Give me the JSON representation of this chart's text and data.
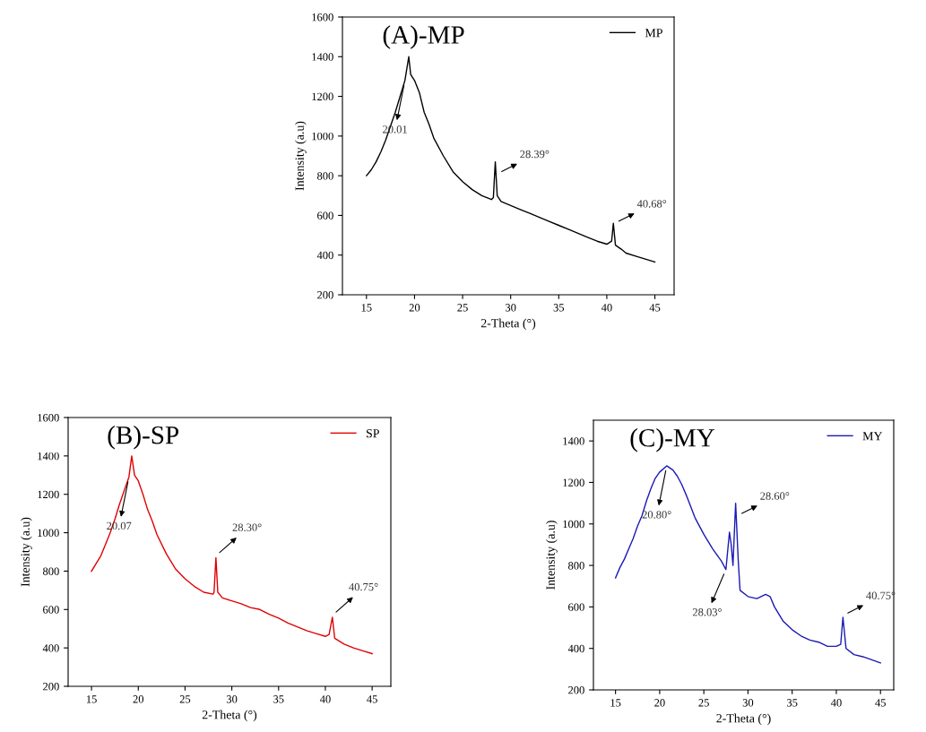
{
  "chart_data": [
    {
      "type": "line",
      "title": "(A)-MP",
      "xlabel": "2-Theta (°)",
      "ylabel": "Intensity (a.u)",
      "xlim": [
        12.5,
        47
      ],
      "ylim": [
        200,
        1600
      ],
      "xticks": [
        15,
        20,
        25,
        30,
        35,
        40,
        45
      ],
      "yticks": [
        200,
        400,
        600,
        800,
        1000,
        1200,
        1400,
        1600
      ],
      "legend": "top right",
      "grid": false,
      "series": [
        {
          "name": "MP",
          "color": "#000000",
          "x": [
            15,
            15.5,
            16,
            16.5,
            17,
            17.5,
            18,
            18.5,
            19,
            19.4,
            19.6,
            20,
            20.5,
            21,
            21.5,
            22,
            23,
            24,
            25,
            26,
            27,
            28,
            28.2,
            28.4,
            28.6,
            29,
            30,
            31,
            32,
            33,
            34,
            35,
            36,
            37,
            38,
            39,
            40,
            40.5,
            40.68,
            40.9,
            41.5,
            42,
            43,
            44,
            45
          ],
          "values": [
            800,
            830,
            870,
            920,
            980,
            1050,
            1120,
            1200,
            1280,
            1400,
            1310,
            1280,
            1220,
            1120,
            1060,
            990,
            900,
            820,
            770,
            730,
            700,
            680,
            690,
            870,
            700,
            670,
            650,
            630,
            610,
            590,
            570,
            550,
            530,
            510,
            490,
            470,
            455,
            470,
            560,
            450,
            430,
            410,
            395,
            380,
            365
          ]
        }
      ],
      "annotations": [
        {
          "text": "20.01",
          "x": 19,
          "y": 1280
        },
        {
          "text": "28.39°",
          "x": 28.6,
          "y": 810
        },
        {
          "text": "40.68°",
          "x": 40.8,
          "y": 560
        }
      ]
    },
    {
      "type": "line",
      "title": "(B)-SP",
      "xlabel": "2-Theta (°)",
      "ylabel": "Intensity (a.u)",
      "xlim": [
        12.5,
        47
      ],
      "ylim": [
        200,
        1600
      ],
      "xticks": [
        15,
        20,
        25,
        30,
        35,
        40,
        45
      ],
      "yticks": [
        200,
        400,
        600,
        800,
        1000,
        1200,
        1400,
        1600
      ],
      "legend": "top right",
      "grid": false,
      "series": [
        {
          "name": "SP",
          "color": "#e00000",
          "x": [
            15,
            15.5,
            16,
            16.5,
            17,
            17.5,
            18,
            18.5,
            19,
            19.3,
            19.6,
            20,
            20.5,
            21,
            21.5,
            22,
            23,
            24,
            25,
            26,
            27,
            28,
            28.1,
            28.3,
            28.5,
            29,
            30,
            31,
            32,
            33,
            34,
            35,
            36,
            37,
            38,
            39,
            40,
            40.4,
            40.75,
            41,
            42,
            43,
            44,
            45
          ],
          "values": [
            800,
            840,
            880,
            940,
            1000,
            1070,
            1150,
            1220,
            1290,
            1400,
            1300,
            1270,
            1200,
            1120,
            1060,
            990,
            890,
            810,
            760,
            720,
            690,
            680,
            690,
            870,
            690,
            660,
            645,
            630,
            610,
            600,
            575,
            555,
            530,
            510,
            490,
            475,
            460,
            470,
            560,
            450,
            420,
            400,
            385,
            370
          ]
        }
      ],
      "annotations": [
        {
          "text": "20.07",
          "x": 19,
          "y": 1290
        },
        {
          "text": "28.30°",
          "x": 28.3,
          "y": 880
        },
        {
          "text": "40.75°",
          "x": 40.75,
          "y": 570
        }
      ]
    },
    {
      "type": "line",
      "title": "(C)-MY",
      "xlabel": "2-Theta (°)",
      "ylabel": "Intensity (a.u)",
      "xlim": [
        12.5,
        46.5
      ],
      "ylim": [
        200,
        1500
      ],
      "xticks": [
        15,
        20,
        25,
        30,
        35,
        40,
        45
      ],
      "yticks": [
        200,
        400,
        600,
        800,
        1000,
        1200,
        1400
      ],
      "legend": "top right",
      "grid": false,
      "series": [
        {
          "name": "MY",
          "color": "#1a1ab4",
          "x": [
            15,
            15.5,
            16,
            16.5,
            17,
            17.5,
            18,
            18.5,
            19,
            19.5,
            20,
            20.8,
            21.5,
            22,
            22.5,
            23,
            24,
            25,
            26,
            27,
            27.5,
            27.9,
            28.1,
            28.3,
            28.6,
            28.9,
            29.1,
            30,
            31,
            32,
            32.5,
            33,
            34,
            35,
            36,
            37,
            38,
            39,
            40,
            40.5,
            40.75,
            41.1,
            42,
            43,
            44,
            45
          ],
          "values": [
            740,
            790,
            830,
            880,
            930,
            990,
            1040,
            1110,
            1170,
            1220,
            1250,
            1280,
            1260,
            1230,
            1190,
            1140,
            1030,
            950,
            880,
            820,
            780,
            960,
            900,
            800,
            1100,
            820,
            680,
            650,
            640,
            660,
            650,
            600,
            530,
            490,
            460,
            440,
            430,
            410,
            410,
            420,
            550,
            400,
            370,
            360,
            345,
            330
          ]
        }
      ],
      "annotations": [
        {
          "text": "20.80°",
          "x": 20.8,
          "y": 1280
        },
        {
          "text": "28.03°",
          "x": 27.5,
          "y": 780
        },
        {
          "text": "28.60°",
          "x": 28.8,
          "y": 1040
        },
        {
          "text": "40.75°",
          "x": 40.8,
          "y": 560
        }
      ]
    }
  ]
}
